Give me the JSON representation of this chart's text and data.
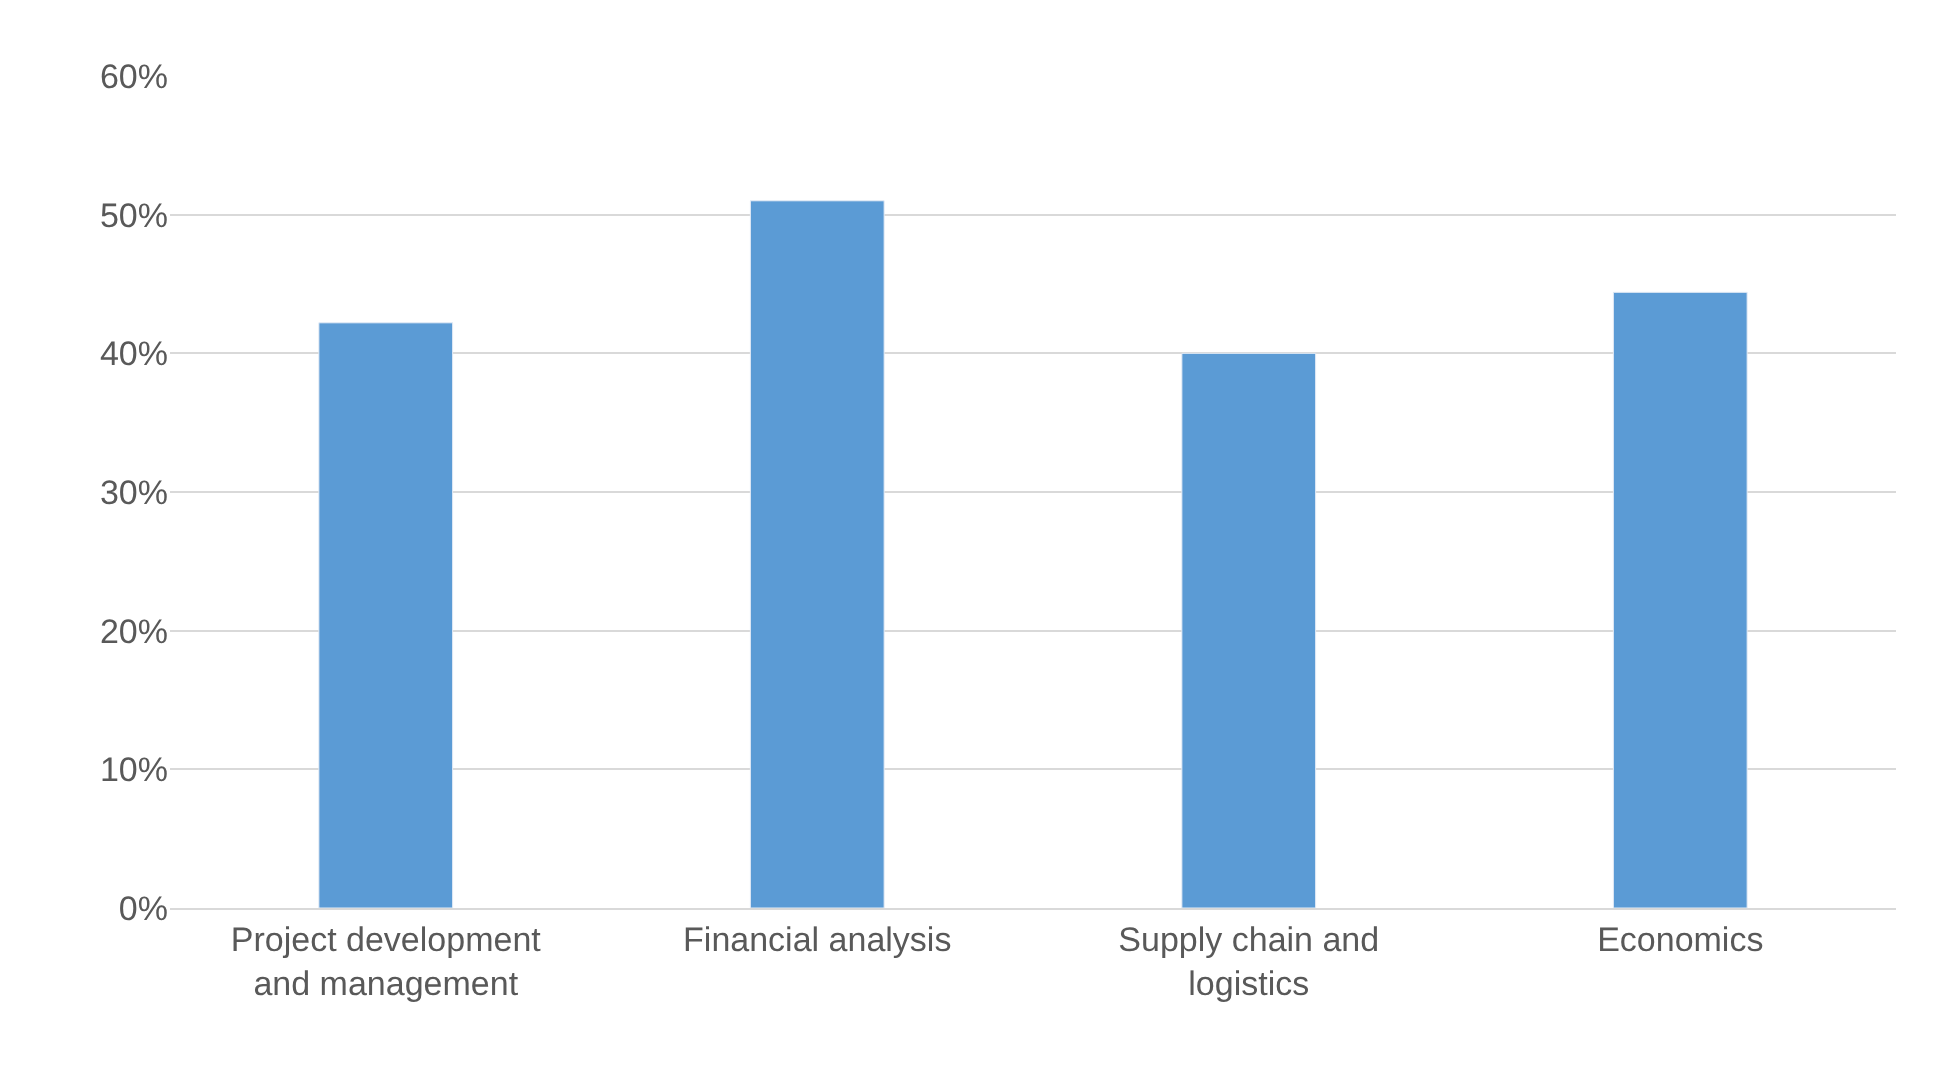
{
  "chart_data": {
    "type": "bar",
    "categories": [
      "Project development and management",
      "Financial analysis",
      "Supply chain and logistics",
      "Economics"
    ],
    "values": [
      42.2,
      51.0,
      40.0,
      44.4
    ],
    "color": "#5b9bd5",
    "ylim": [
      0,
      60
    ],
    "yticks": [
      {
        "value": 0,
        "label": "0%"
      },
      {
        "value": 10,
        "label": "10%"
      },
      {
        "value": 20,
        "label": "20%"
      },
      {
        "value": 30,
        "label": "30%"
      },
      {
        "value": 40,
        "label": "40%"
      },
      {
        "value": 50,
        "label": "50%"
      },
      {
        "value": 60,
        "label": "60%"
      }
    ],
    "grid": "y"
  }
}
